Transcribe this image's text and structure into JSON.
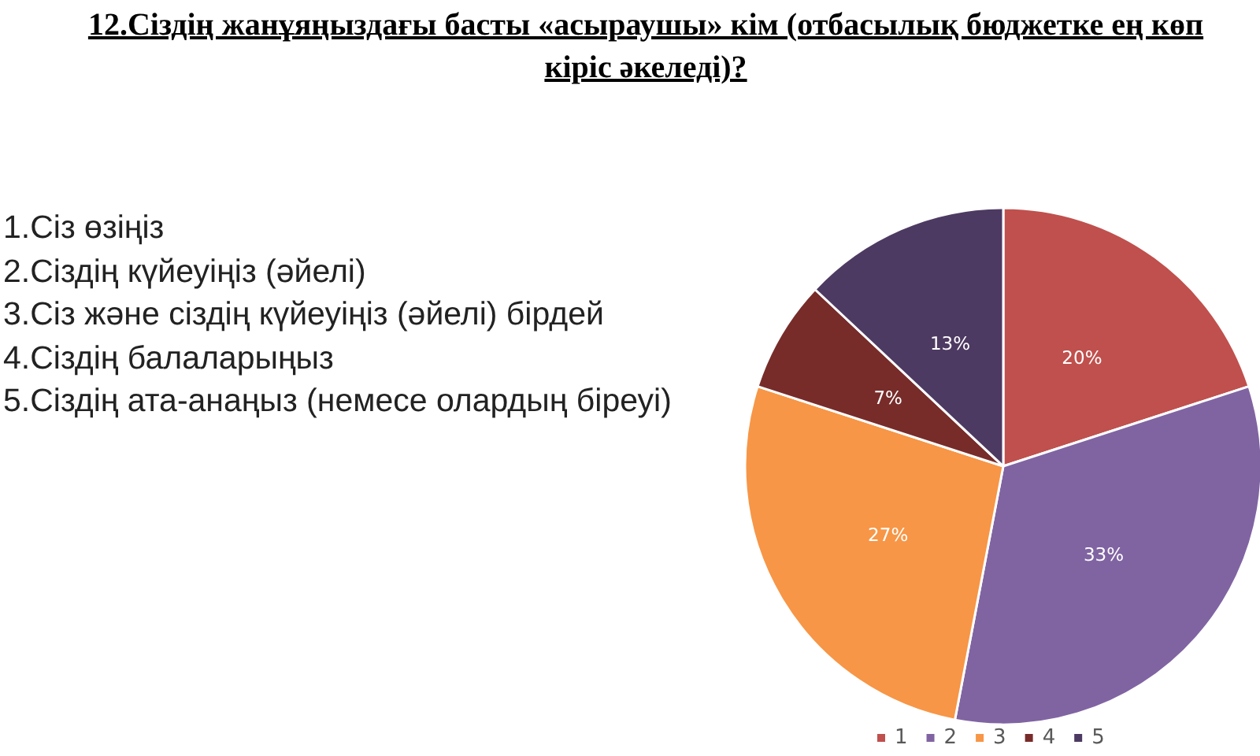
{
  "chart_data": {
    "type": "pie",
    "title": "12.Сіздің жанұяңыздағы басты «асыраушы» кім (отбасылық бюджетке ең көп кіріс әкеледі)?",
    "categories": [
      "1",
      "2",
      "3",
      "4",
      "5"
    ],
    "values": [
      20,
      33,
      27,
      7,
      13
    ],
    "colors": [
      "#c0504d",
      "#8064a2",
      "#f79646",
      "#772c2a",
      "#4d3a62"
    ],
    "value_labels": [
      "20%",
      "33%",
      "27%",
      "7%",
      "13%"
    ],
    "legend": "bottom",
    "annotations": [
      "1.Сіз өзіңіз",
      "2.Сіздің күйеуіңіз (әйелі)",
      "3.Сіз және сіздің күйеуіңіз (әйелі) бірдей",
      "4.Сіздің балаларыңыз",
      "5.Сіздің ата-анаңыз (немесе олардың біреуі)"
    ]
  }
}
